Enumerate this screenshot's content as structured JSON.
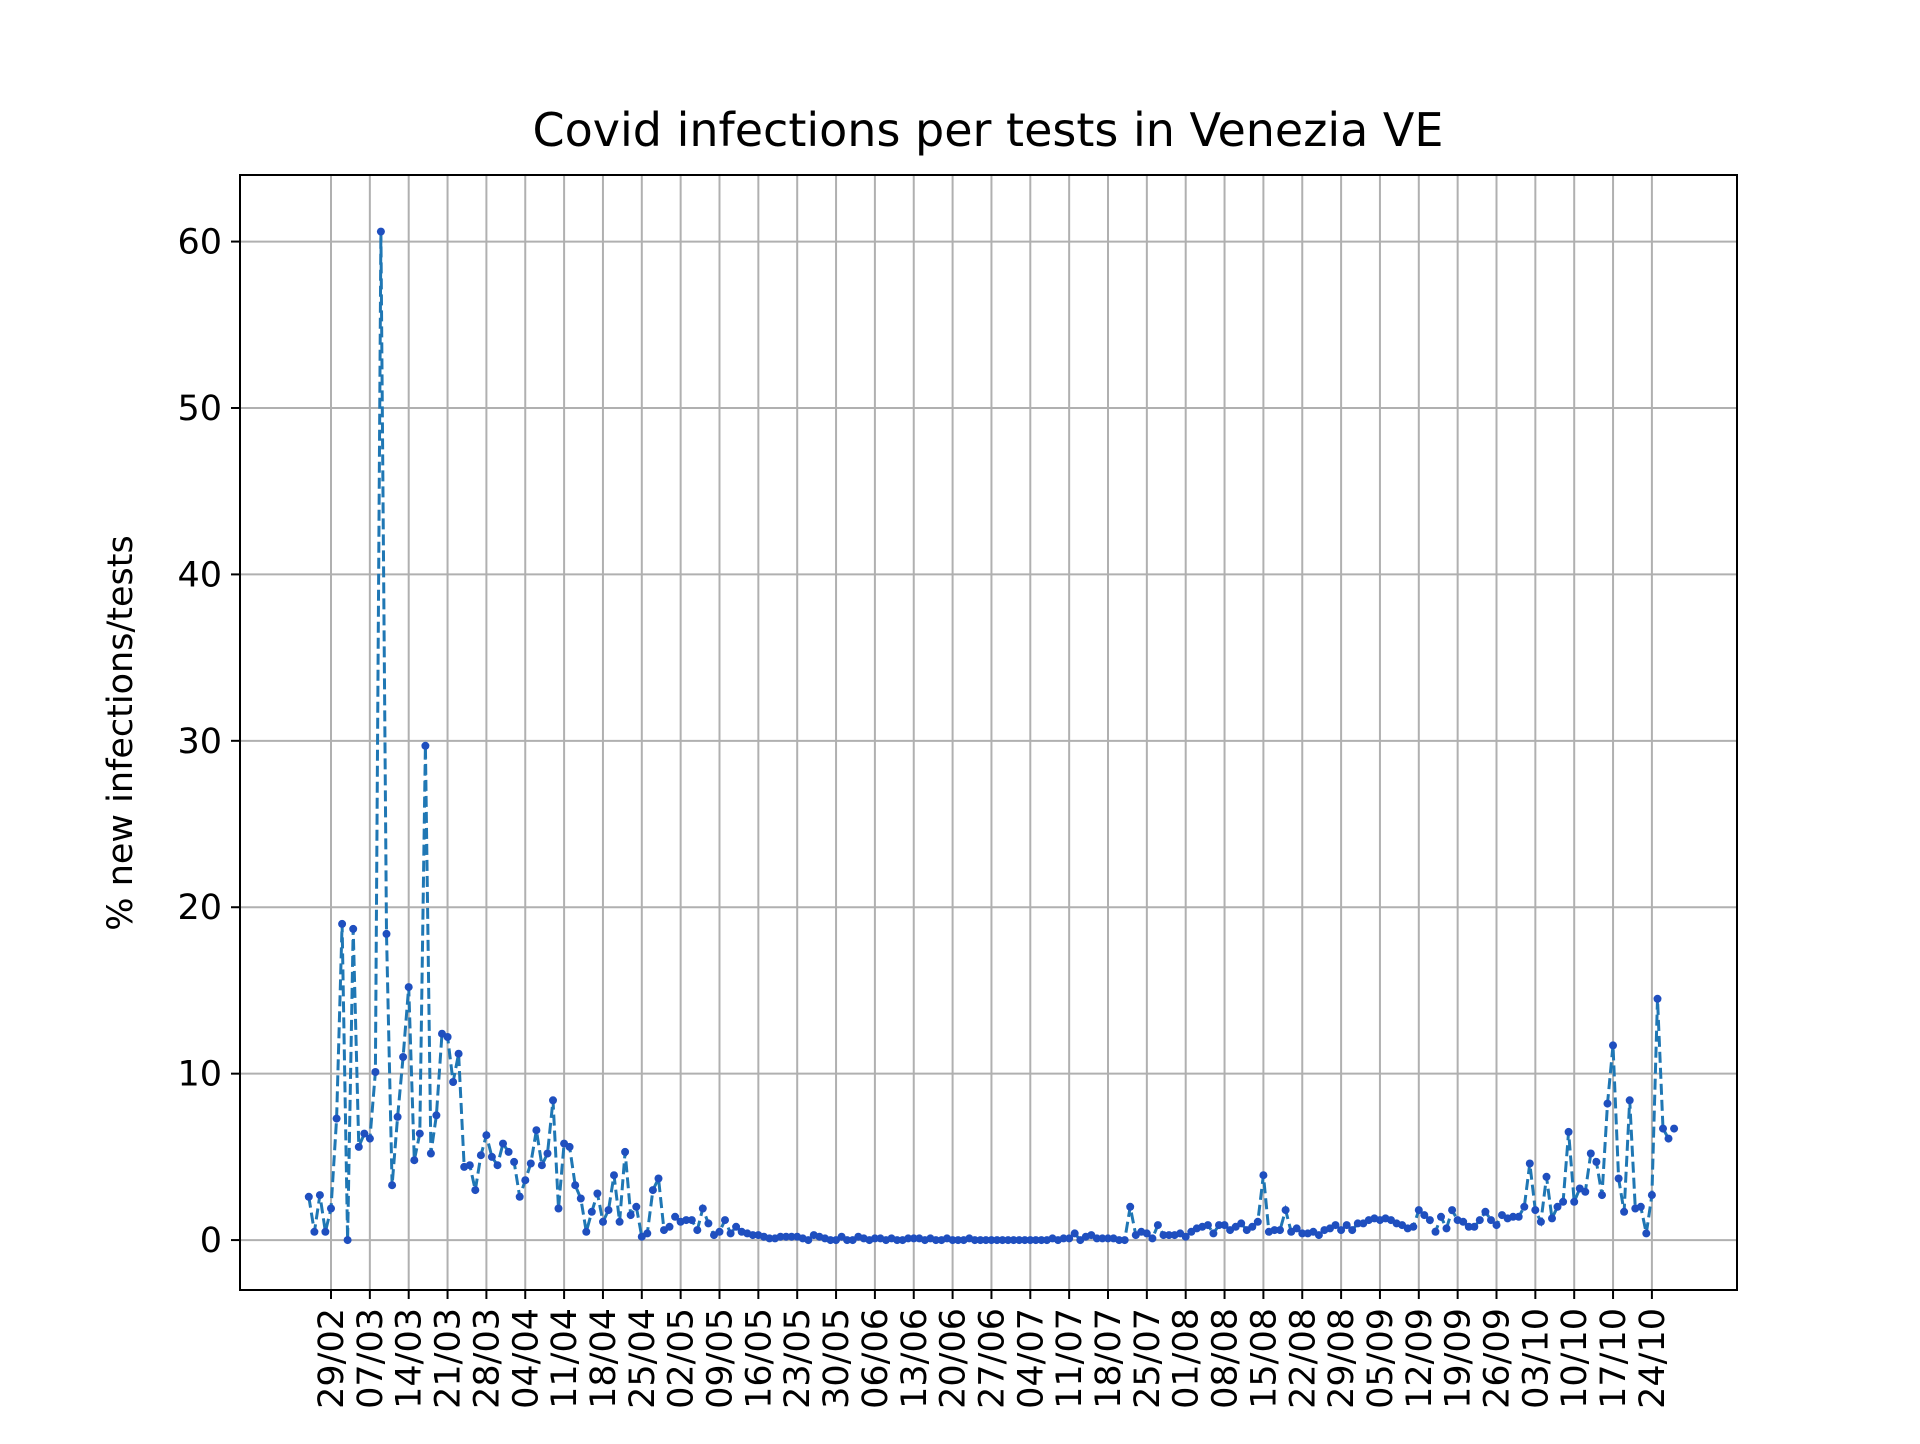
{
  "chart_data": {
    "type": "line",
    "title": "Covid infections per tests in Venezia VE",
    "xlabel": "",
    "ylabel": "% new infections/tests",
    "ylim": [
      -3,
      64
    ],
    "yticks": [
      0,
      10,
      20,
      30,
      40,
      50,
      60
    ],
    "xticks": [
      "29/02",
      "07/03",
      "14/03",
      "21/03",
      "28/03",
      "04/04",
      "11/04",
      "18/04",
      "25/04",
      "02/05",
      "09/05",
      "16/05",
      "23/05",
      "30/05",
      "06/06",
      "13/06",
      "20/06",
      "27/06",
      "04/07",
      "11/07",
      "18/07",
      "25/07",
      "01/08",
      "08/08",
      "15/08",
      "22/08",
      "29/08",
      "05/09",
      "12/09",
      "19/09",
      "26/09",
      "03/10",
      "10/10",
      "17/10",
      "24/10"
    ],
    "grid": true,
    "legend": "none",
    "series_color": "#1f77b4",
    "marker_color": "#1f4fbf",
    "line_style": "dashed",
    "series": [
      {
        "x_start": "25/02",
        "values": [
          2.6,
          0.5,
          2.7,
          0.5,
          1.9,
          7.3,
          19.0,
          0.0,
          18.7,
          5.6,
          6.4,
          6.1,
          10.1,
          60.6,
          18.4,
          3.3,
          7.4,
          11.0,
          15.2,
          4.8,
          6.4,
          29.7,
          5.2,
          7.5,
          12.4,
          12.2,
          9.5,
          11.2,
          4.4,
          4.5,
          3.0,
          5.1,
          6.3,
          5.0,
          4.5,
          5.8,
          5.3,
          4.7,
          2.6,
          3.6,
          4.6,
          6.6,
          4.5,
          5.2,
          8.4,
          1.9,
          5.8,
          5.6,
          3.3,
          2.5,
          0.5,
          1.7,
          2.8,
          1.1,
          1.8,
          3.9,
          1.1,
          5.3,
          1.5,
          2.0,
          0.2,
          0.4,
          3.0,
          3.7,
          0.6,
          0.8,
          1.4,
          1.1,
          1.2,
          1.2,
          0.6,
          1.9,
          1.0,
          0.3,
          0.5,
          1.2,
          0.4,
          0.8,
          0.5,
          0.4,
          0.3,
          0.3,
          0.2,
          0.1,
          0.1,
          0.2,
          0.2,
          0.2,
          0.2,
          0.1,
          0.0,
          0.3,
          0.2,
          0.1,
          0.0,
          0.0,
          0.2,
          0.0,
          0.0,
          0.2,
          0.1,
          0.0,
          0.1,
          0.1,
          0.0,
          0.1,
          0.0,
          0.0,
          0.1,
          0.1,
          0.1,
          0.0,
          0.1,
          0.0,
          0.0,
          0.1,
          0.0,
          0.0,
          0.0,
          0.1,
          0.0,
          0.0,
          0.0,
          0.0,
          0.0,
          0.0,
          0.0,
          0.0,
          0.0,
          0.0,
          0.0,
          0.0,
          0.0,
          0.0,
          0.1,
          0.0,
          0.1,
          0.1,
          0.4,
          0.0,
          0.2,
          0.3,
          0.1,
          0.1,
          0.1,
          0.1,
          0.0,
          0.0,
          2.0,
          0.3,
          0.5,
          0.4,
          0.1,
          0.9,
          0.3,
          0.3,
          0.3,
          0.4,
          0.2,
          0.5,
          0.7,
          0.8,
          0.9,
          0.4,
          0.9,
          0.9,
          0.6,
          0.8,
          1.0,
          0.6,
          0.8,
          1.1,
          3.9,
          0.5,
          0.6,
          0.6,
          1.8,
          0.5,
          0.7,
          0.4,
          0.4,
          0.5,
          0.3,
          0.6,
          0.7,
          0.9,
          0.6,
          0.9,
          0.6,
          1.0,
          1.0,
          1.2,
          1.3,
          1.2,
          1.3,
          1.2,
          1.0,
          0.9,
          0.7,
          0.8,
          1.8,
          1.5,
          1.2,
          0.5,
          1.4,
          0.7,
          1.8,
          1.2,
          1.1,
          0.8,
          0.8,
          1.2,
          1.7,
          1.2,
          0.9,
          1.5,
          1.3,
          1.4,
          1.4,
          2.0,
          4.6,
          1.8,
          1.1,
          3.8,
          1.3,
          2.0,
          2.3,
          6.5,
          2.3,
          3.1,
          2.9,
          5.2,
          4.7,
          2.7,
          8.2,
          11.7,
          3.7,
          1.7,
          8.4,
          1.9,
          2.0,
          0.4,
          2.7,
          14.5,
          6.7,
          6.1,
          6.7
        ]
      }
    ]
  }
}
